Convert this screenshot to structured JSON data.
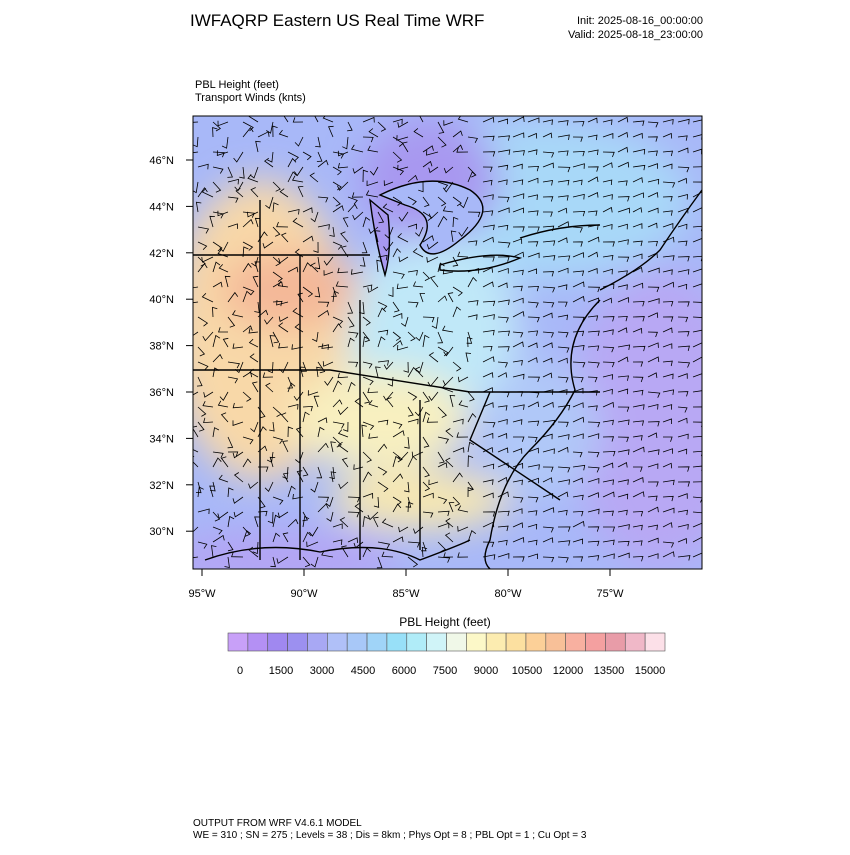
{
  "header": {
    "title": "IWFAQRP Eastern US Real Time WRF",
    "init": "Init: 2025-08-16_00:00:00",
    "valid": "Valid: 2025-08-18_23:00:00"
  },
  "map": {
    "fields": [
      "PBL Height   (feet)",
      "Transport Winds   (knts)"
    ],
    "lat_labels": [
      "46°N",
      "44°N",
      "42°N",
      "40°N",
      "38°N",
      "36°N",
      "34°N",
      "32°N",
      "30°N"
    ],
    "lon_labels": [
      "95°W",
      "90°W",
      "85°W",
      "80°W",
      "75°W"
    ]
  },
  "colorbar": {
    "title": "PBL Height  (feet)",
    "labels": [
      0,
      1500,
      3000,
      4500,
      6000,
      7500,
      9000,
      10500,
      12000,
      13500,
      15000
    ],
    "colors": [
      "#c8a0f8",
      "#b490f4",
      "#a088f0",
      "#9c90f0",
      "#a8a8f4",
      "#b0c0f8",
      "#a8c8f8",
      "#a0d4f8",
      "#98e0f8",
      "#b0ecf8",
      "#d0f4f8",
      "#f0f8e8",
      "#fcf8c8",
      "#fcecb0",
      "#fce0a0",
      "#fcd098",
      "#f8c098",
      "#f8b0a0",
      "#f4a0a0",
      "#e89ca8",
      "#f0b8c8",
      "#fce0e8"
    ]
  },
  "footer": {
    "lines": [
      "OUTPUT FROM WRF V4.6.1 MODEL",
      "WE = 310 ; SN = 275 ; Levels = 38 ; Dis = 8km ; Phys Opt = 8 ; PBL Opt = 1 ; Cu Opt = 3"
    ]
  }
}
